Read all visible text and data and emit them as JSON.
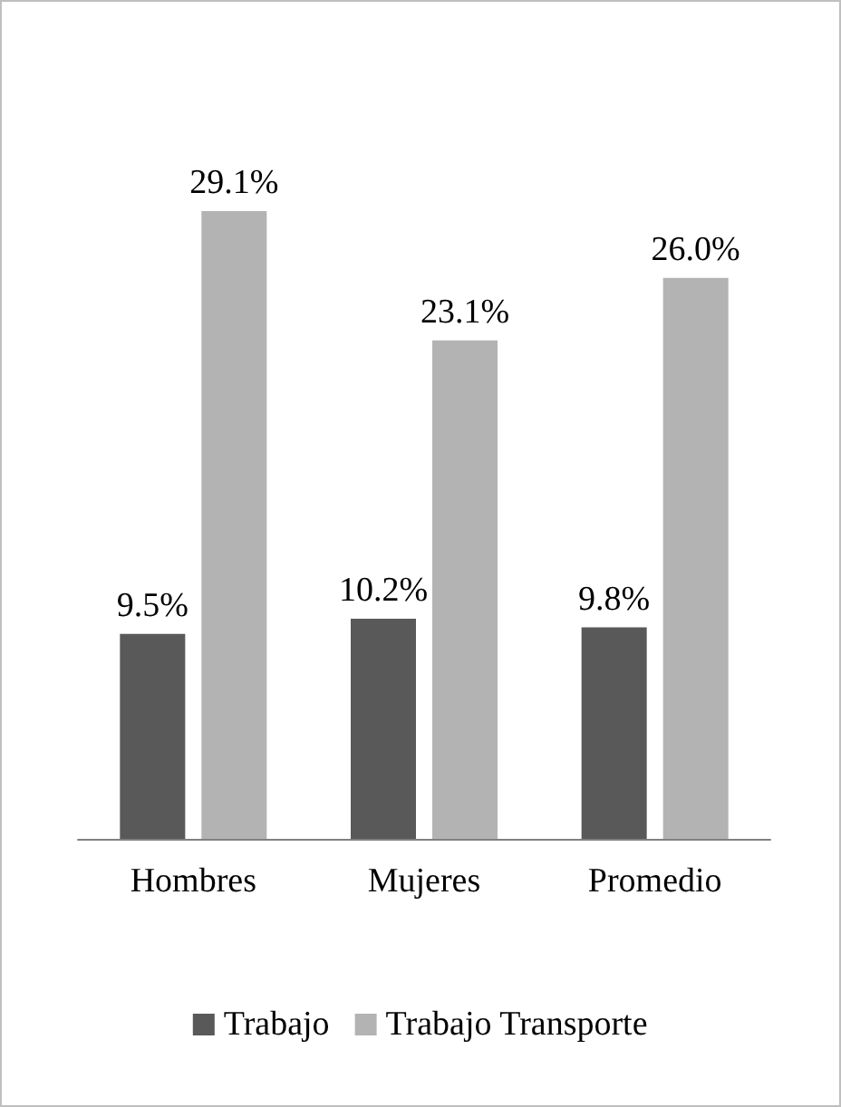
{
  "chart_data": {
    "type": "bar",
    "categories": [
      "Hombres",
      "Mujeres",
      "Promedio"
    ],
    "series": [
      {
        "name": "Trabajo",
        "color": "#595959",
        "values": [
          9.5,
          10.2,
          9.8
        ],
        "value_labels": [
          "9.5%",
          "10.2%",
          "9.8%"
        ]
      },
      {
        "name": "Trabajo Transporte",
        "color": "#b3b3b3",
        "values": [
          29.1,
          23.1,
          26.0
        ],
        "value_labels": [
          "29.1%",
          "23.1%",
          "26.0%"
        ]
      }
    ],
    "grid": false,
    "legend": "bottom"
  }
}
